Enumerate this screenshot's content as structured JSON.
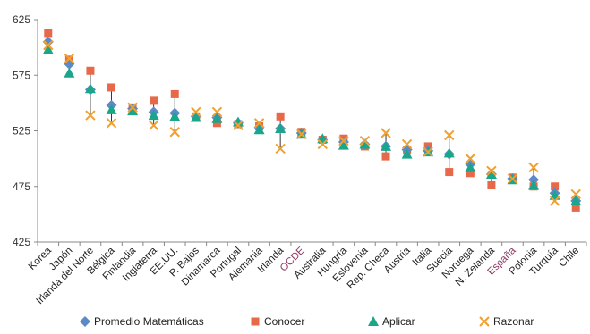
{
  "chart_data": {
    "type": "scatter",
    "categories": [
      "Korea",
      "Japón",
      "Irlanda del Norte",
      "Bélgica",
      "Finlandia",
      "Inglaterra",
      "EE.UU.",
      "P. Bajos",
      "Dinamarca",
      "Portugal",
      "Alemania",
      "Irlanda",
      "OCDE",
      "Australia",
      "Hungría",
      "Eslovenia",
      "Rep. Checa",
      "Austria",
      "Italia",
      "Suecia",
      "Noruega",
      "N. Zelanda",
      "España",
      "Polonia",
      "Turquía",
      "Chile"
    ],
    "highlight_categories": [
      "OCDE",
      "España"
    ],
    "highlight_color": "#8b3a62",
    "ylim": [
      425,
      625
    ],
    "yticks": [
      425,
      475,
      525,
      575,
      625
    ],
    "series": [
      {
        "name": "Promedio Matemáticas",
        "marker": "diamond",
        "color": "#5b8ac6",
        "values": [
          605,
          585,
          562,
          548,
          545,
          542,
          541,
          538,
          537,
          532,
          528,
          527,
          523,
          517,
          515,
          513,
          511,
          508,
          507,
          504,
          495,
          486,
          482,
          481,
          469,
          462
        ]
      },
      {
        "name": "Conocer",
        "marker": "square",
        "color": "#e8694a",
        "values": [
          613,
          589,
          579,
          564,
          546,
          552,
          558,
          538,
          532,
          531,
          529,
          538,
          524,
          517,
          518,
          511,
          502,
          508,
          511,
          488,
          487,
          476,
          483,
          475,
          475,
          456
        ]
      },
      {
        "name": "Aplicar",
        "marker": "triangle",
        "color": "#1aa68a",
        "values": [
          598,
          577,
          563,
          544,
          543,
          539,
          538,
          537,
          536,
          533,
          526,
          527,
          522,
          518,
          512,
          513,
          511,
          504,
          506,
          505,
          492,
          486,
          481,
          476,
          467,
          462
        ]
      },
      {
        "name": "Razonar",
        "marker": "x",
        "color": "#f0a030",
        "values": [
          602,
          590,
          539,
          532,
          546,
          530,
          524,
          542,
          542,
          530,
          532,
          509,
          522,
          513,
          516,
          516,
          523,
          513,
          506,
          521,
          500,
          489,
          482,
          492,
          462,
          468
        ]
      }
    ],
    "grid": false,
    "legend_position": "bottom"
  }
}
